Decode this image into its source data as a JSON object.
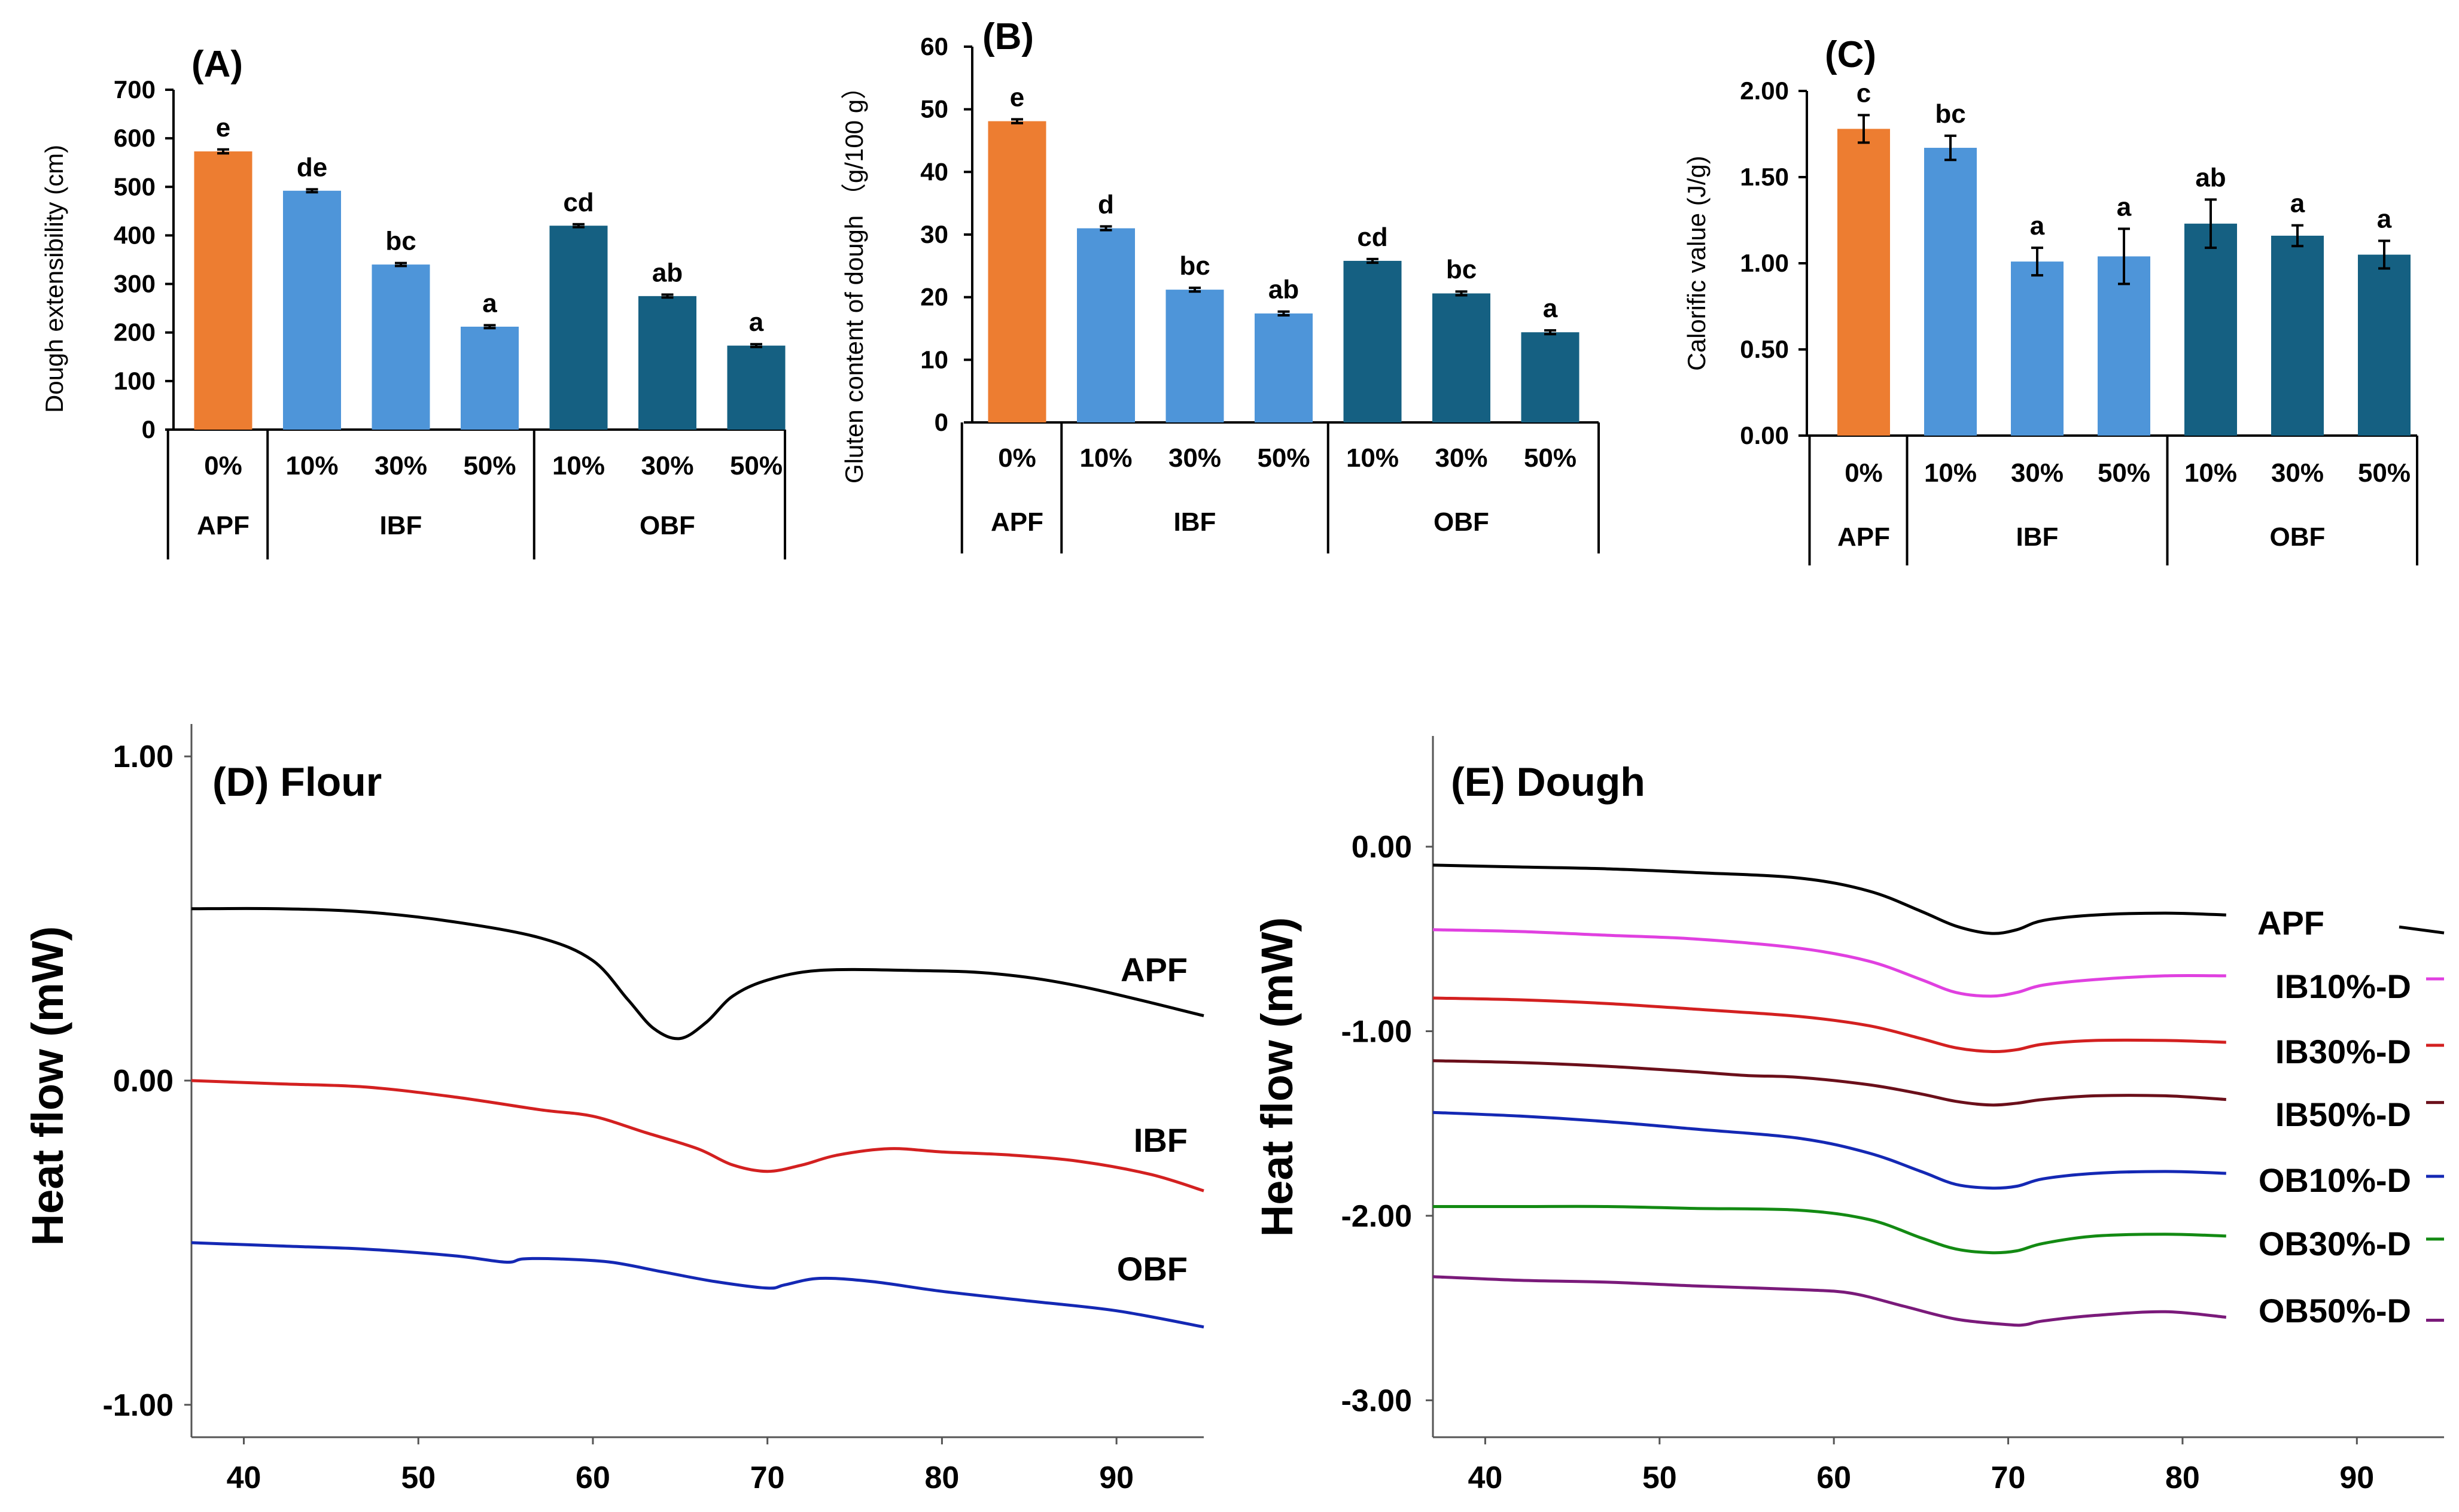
{
  "colors": {
    "APF": "#ED7D31",
    "IBF": "#4E95D9",
    "OBF": "#156082",
    "axis": "#000000",
    "dsc_APF": "#000000",
    "dsc_IBF": "#D32020",
    "dsc_OBF": "#1428B4",
    "dsc_IB10": "#E040E0",
    "dsc_IB30": "#D32020",
    "dsc_IB50": "#6B0F1A",
    "dsc_OB10": "#1428B4",
    "dsc_OB30": "#138A13",
    "dsc_OB50": "#7A1A7A"
  },
  "chart_data": [
    {
      "id": "A",
      "type": "bar",
      "title": "(A)",
      "ylabel": "Dough extensibility (cm)",
      "ylim": [
        0,
        700
      ],
      "yticks": [
        0,
        100,
        200,
        300,
        400,
        500,
        600,
        700
      ],
      "ytick_labels": [
        "0",
        "100",
        "200",
        "300",
        "400",
        "500",
        "600",
        "700"
      ],
      "categories": [
        "0%",
        "10%",
        "30%",
        "50%",
        "10%",
        "30%",
        "50%"
      ],
      "groups": [
        {
          "name": "APF",
          "count": 1
        },
        {
          "name": "IBF",
          "count": 3
        },
        {
          "name": "OBF",
          "count": 3
        }
      ],
      "values": [
        573,
        492,
        340,
        212,
        420,
        275,
        173
      ],
      "errors": [
        4,
        3,
        3,
        3,
        3,
        3,
        3
      ],
      "letters": [
        "e",
        "de",
        "bc",
        "a",
        "cd",
        "ab",
        "a"
      ]
    },
    {
      "id": "B",
      "type": "bar",
      "title": "(B)",
      "ylabel": "Gluten content of dough （g/100 g）",
      "ylim": [
        0,
        60
      ],
      "yticks": [
        0,
        10,
        20,
        30,
        40,
        50,
        60
      ],
      "ytick_labels": [
        "0",
        "10",
        "20",
        "30",
        "40",
        "50",
        "60"
      ],
      "categories": [
        "0%",
        "10%",
        "30%",
        "50%",
        "10%",
        "30%",
        "50%"
      ],
      "groups": [
        {
          "name": "APF",
          "count": 1
        },
        {
          "name": "IBF",
          "count": 3
        },
        {
          "name": "OBF",
          "count": 3
        }
      ],
      "values": [
        48.1,
        31.0,
        21.2,
        17.4,
        25.8,
        20.6,
        14.4
      ],
      "errors": [
        0.3,
        0.3,
        0.3,
        0.3,
        0.3,
        0.3,
        0.3
      ],
      "letters": [
        "e",
        "d",
        "bc",
        "ab",
        "cd",
        "bc",
        "a"
      ]
    },
    {
      "id": "C",
      "type": "bar",
      "title": "(C)",
      "ylabel": "Calorific value (J/g)",
      "ylim": [
        0,
        2
      ],
      "yticks": [
        0,
        0.5,
        1.0,
        1.5,
        2.0
      ],
      "ytick_labels": [
        "0.00",
        "0.50",
        "1.00",
        "1.50",
        "2.00"
      ],
      "categories": [
        "0%",
        "10%",
        "30%",
        "50%",
        "10%",
        "30%",
        "50%"
      ],
      "groups": [
        {
          "name": "APF",
          "count": 1
        },
        {
          "name": "IBF",
          "count": 3
        },
        {
          "name": "OBF",
          "count": 3
        }
      ],
      "values": [
        1.78,
        1.67,
        1.01,
        1.04,
        1.23,
        1.16,
        1.05
      ],
      "errors": [
        0.08,
        0.07,
        0.08,
        0.16,
        0.14,
        0.06,
        0.08
      ],
      "letters": [
        "c",
        "bc",
        "a",
        "a",
        "ab",
        "a",
        "a"
      ]
    },
    {
      "id": "D",
      "type": "line",
      "title": "(D) Flour",
      "ylabel": "Heat flow (mW)",
      "xlim": [
        37,
        95
      ],
      "ylim": [
        -1.1,
        1.1
      ],
      "xticks": [
        40,
        50,
        60,
        70,
        80,
        90
      ],
      "xtick_labels": [
        "40",
        "50",
        "60",
        "70",
        "80",
        "90"
      ],
      "yticks": [
        -1.0,
        0.0,
        1.0
      ],
      "ytick_labels": [
        "-1.00",
        "0.00",
        "1.00"
      ],
      "series": [
        {
          "name": "APF",
          "color_key": "dsc_APF",
          "x": [
            37,
            42,
            47,
            52,
            57,
            60,
            62,
            63.5,
            65,
            66.5,
            68,
            70,
            73,
            78,
            83,
            88,
            95
          ],
          "y": [
            0.53,
            0.53,
            0.52,
            0.49,
            0.44,
            0.37,
            0.25,
            0.16,
            0.13,
            0.18,
            0.26,
            0.31,
            0.34,
            0.34,
            0.33,
            0.29,
            0.2
          ]
        },
        {
          "name": "IBF",
          "color_key": "dsc_IBF",
          "x": [
            37,
            42,
            47,
            52,
            57,
            60,
            63,
            66,
            68,
            70,
            72,
            74,
            77,
            80,
            84,
            88,
            92,
            95
          ],
          "y": [
            0.0,
            -0.01,
            -0.02,
            -0.05,
            -0.09,
            -0.11,
            -0.16,
            -0.21,
            -0.26,
            -0.28,
            -0.26,
            -0.23,
            -0.21,
            -0.22,
            -0.23,
            -0.25,
            -0.29,
            -0.34
          ]
        },
        {
          "name": "OBF",
          "color_key": "dsc_OBF",
          "x": [
            37,
            42,
            47,
            52,
            55,
            56,
            58,
            61,
            64,
            67,
            70,
            71,
            73,
            76,
            80,
            85,
            90,
            95
          ],
          "y": [
            -0.5,
            -0.51,
            -0.52,
            -0.54,
            -0.56,
            -0.55,
            -0.55,
            -0.56,
            -0.59,
            -0.62,
            -0.64,
            -0.63,
            -0.61,
            -0.62,
            -0.65,
            -0.68,
            -0.71,
            -0.76
          ]
        }
      ]
    },
    {
      "id": "E",
      "type": "line",
      "title": "(E) Dough",
      "ylabel": "Heat flow (mW)",
      "xlim": [
        37,
        95
      ],
      "ylim": [
        -3.2,
        0.6
      ],
      "xticks": [
        40,
        50,
        60,
        70,
        80,
        90
      ],
      "xtick_labels": [
        "40",
        "50",
        "60",
        "70",
        "80",
        "90"
      ],
      "yticks": [
        -3.0,
        -2.0,
        -1.0,
        0.0
      ],
      "ytick_labels": [
        "-3.00",
        "-2.00",
        "-1.00",
        "0.00"
      ],
      "series": [
        {
          "name": "APF",
          "color_key": "dsc_APF",
          "x": [
            37,
            42,
            47,
            52,
            58,
            62,
            65,
            67,
            69,
            70.5,
            72,
            75,
            79,
            82.5
          ],
          "y": [
            -0.1,
            -0.11,
            -0.12,
            -0.14,
            -0.17,
            -0.24,
            -0.35,
            -0.43,
            -0.47,
            -0.45,
            -0.4,
            -0.37,
            -0.36,
            -0.37
          ]
        },
        {
          "name": "IB10%-D",
          "color_key": "dsc_IB10",
          "x": [
            37,
            42,
            47,
            52,
            58,
            62,
            65,
            67,
            69,
            70.5,
            72,
            75,
            79,
            82.5
          ],
          "y": [
            -0.45,
            -0.46,
            -0.48,
            -0.5,
            -0.55,
            -0.62,
            -0.72,
            -0.79,
            -0.81,
            -0.79,
            -0.75,
            -0.72,
            -0.7,
            -0.7
          ]
        },
        {
          "name": "IB30%-D",
          "color_key": "dsc_IB30",
          "x": [
            37,
            42,
            47,
            52,
            58,
            62,
            65,
            67,
            69,
            70.5,
            72,
            75,
            79,
            82.5
          ],
          "y": [
            -0.82,
            -0.83,
            -0.85,
            -0.88,
            -0.92,
            -0.97,
            -1.04,
            -1.09,
            -1.11,
            -1.1,
            -1.07,
            -1.05,
            -1.05,
            -1.06
          ]
        },
        {
          "name": "IB50%-D",
          "color_key": "dsc_IB50",
          "x": [
            37,
            42,
            47,
            52,
            55,
            58,
            62,
            65,
            67,
            69,
            70.5,
            72,
            75,
            79,
            82.5
          ],
          "y": [
            -1.16,
            -1.17,
            -1.19,
            -1.22,
            -1.24,
            -1.25,
            -1.29,
            -1.34,
            -1.38,
            -1.4,
            -1.39,
            -1.37,
            -1.35,
            -1.35,
            -1.37
          ]
        },
        {
          "name": "OB10%-D",
          "color_key": "dsc_OB10",
          "x": [
            37,
            42,
            47,
            52,
            58,
            62,
            65,
            67,
            69,
            70.5,
            72,
            75,
            79,
            82.5
          ],
          "y": [
            -1.44,
            -1.46,
            -1.49,
            -1.53,
            -1.58,
            -1.66,
            -1.76,
            -1.83,
            -1.85,
            -1.84,
            -1.8,
            -1.77,
            -1.76,
            -1.77
          ]
        },
        {
          "name": "OB30%-D",
          "color_key": "dsc_OB30",
          "x": [
            37,
            42,
            47,
            52,
            58,
            62,
            65,
            67,
            69,
            70.5,
            72,
            75,
            79,
            82.5
          ],
          "y": [
            -1.95,
            -1.95,
            -1.95,
            -1.96,
            -1.97,
            -2.02,
            -2.12,
            -2.18,
            -2.2,
            -2.19,
            -2.15,
            -2.11,
            -2.1,
            -2.11
          ]
        },
        {
          "name": "OB50%-D",
          "color_key": "dsc_OB50",
          "x": [
            37,
            42,
            47,
            52,
            58,
            61,
            64,
            67,
            70,
            71,
            72,
            75,
            79,
            82.5
          ],
          "y": [
            -2.33,
            -2.35,
            -2.36,
            -2.38,
            -2.4,
            -2.42,
            -2.49,
            -2.56,
            -2.59,
            -2.59,
            -2.57,
            -2.54,
            -2.52,
            -2.55
          ]
        }
      ]
    }
  ]
}
